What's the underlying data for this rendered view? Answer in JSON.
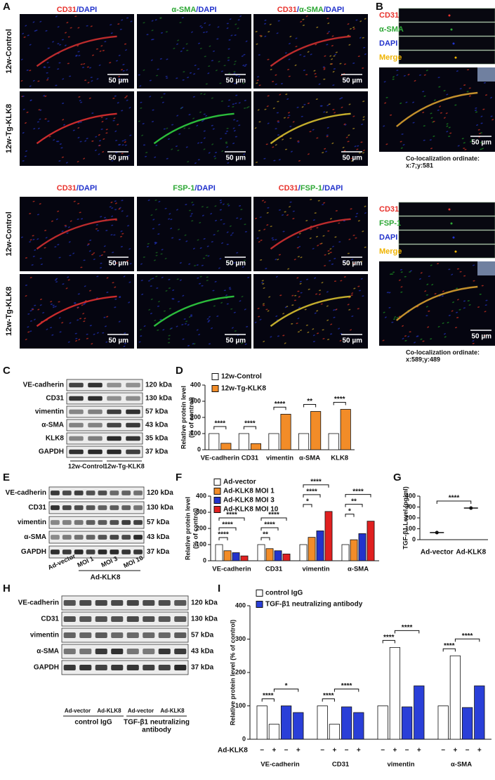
{
  "panel_a": {
    "label": "A",
    "scale_bar": "50 µm",
    "top": {
      "headers": [
        [
          {
            "text": "CD31",
            "color": "#e8322c"
          },
          {
            "text": "/DAPI",
            "color": "#2233cc"
          }
        ],
        [
          {
            "text": "α-SMA",
            "color": "#2ea836"
          },
          {
            "text": "/DAPI",
            "color": "#2233cc"
          }
        ],
        [
          {
            "text": "CD31",
            "color": "#e8322c"
          },
          {
            "text": "/",
            "color": "#2233cc"
          },
          {
            "text": "α-SMA",
            "color": "#2ea836"
          },
          {
            "text": "/DAPI",
            "color": "#2233cc"
          }
        ]
      ],
      "rows": [
        "12w-Control",
        "12w-Tg-KLK8"
      ]
    },
    "bottom": {
      "headers": [
        [
          {
            "text": "CD31",
            "color": "#e8322c"
          },
          {
            "text": "/DAPI",
            "color": "#2233cc"
          }
        ],
        [
          {
            "text": "FSP-1",
            "color": "#2ea836"
          },
          {
            "text": "/DAPI",
            "color": "#2233cc"
          }
        ],
        [
          {
            "text": "CD31",
            "color": "#e8322c"
          },
          {
            "text": "/",
            "color": "#2233cc"
          },
          {
            "text": "FSP-1",
            "color": "#2ea836"
          },
          {
            "text": "/DAPI",
            "color": "#2233cc"
          }
        ]
      ],
      "rows": [
        "12w-Control",
        "12w-Tg-KLK8"
      ]
    }
  },
  "panel_b": {
    "label": "B",
    "blocks": [
      {
        "channels": [
          {
            "text": "CD31",
            "color": "#e8322c"
          },
          {
            "text": "α-SMA",
            "color": "#2ea836"
          },
          {
            "text": "DAPI",
            "color": "#2233cc"
          },
          {
            "text": "Merge",
            "color": "#f0b400"
          }
        ],
        "scale_bar": "50 µm",
        "coloc_title": "Co-localization ordinate:",
        "coloc_value": "x:7;y:581"
      },
      {
        "channels": [
          {
            "text": "CD31",
            "color": "#e8322c"
          },
          {
            "text": "FSP-1",
            "color": "#2ea836"
          },
          {
            "text": "DAPI",
            "color": "#2233cc"
          },
          {
            "text": "Merge",
            "color": "#f0b400"
          }
        ],
        "scale_bar": "50 µm",
        "coloc_title": "Co-localization ordinate:",
        "coloc_value": "x:589;y:489"
      }
    ]
  },
  "panel_c": {
    "label": "C",
    "proteins": [
      "VE-cadherin",
      "CD31",
      "vimentin",
      "α-SMA",
      "KLK8",
      "GAPDH"
    ],
    "sizes": [
      "120 kDa",
      "130 kDa",
      "57 kDa",
      "43 kDa",
      "35 kDa",
      "37 kDa"
    ],
    "groups": [
      "12w-Control",
      "12w-Tg-KLK8"
    ]
  },
  "panel_e": {
    "label": "E",
    "proteins": [
      "VE-cadherin",
      "CD31",
      "vimentin",
      "α-SMA",
      "GAPDH"
    ],
    "sizes": [
      "120 kDa",
      "130 kDa",
      "57 kDa",
      "43 kDa",
      "37 kDa"
    ],
    "lanes": [
      "Ad-vector",
      "MOI 1",
      "MOI 3",
      "MOI 10"
    ],
    "group": "Ad-KLK8"
  },
  "panel_h": {
    "label": "H",
    "proteins": [
      "VE-cadherin",
      "CD31",
      "vimentin",
      "α-SMA",
      "GAPDH"
    ],
    "sizes": [
      "120 kDa",
      "130 kDa",
      "57 kDa",
      "43 kDa",
      "37 kDa"
    ],
    "lanes": [
      "Ad-vector",
      "Ad-KLK8",
      "Ad-vector",
      "Ad-KLK8"
    ],
    "groups": [
      [
        "control IgG"
      ],
      [
        "TGF-β1 neutralizing",
        "antibody"
      ]
    ]
  },
  "chart_data": [
    {
      "panel": "D",
      "type": "bar",
      "ylabel": [
        "Relative protein level",
        "(% of control)"
      ],
      "categories": [
        "VE-cadherin",
        "CD31",
        "vimentin",
        "α-SMA",
        "KLK8"
      ],
      "series": [
        {
          "name": "12w-Control",
          "color": "#ffffff",
          "values": [
            100,
            100,
            100,
            100,
            100
          ]
        },
        {
          "name": "12w-Tg-KLK8",
          "color": "#f28c28",
          "values": [
            40,
            38,
            220,
            237,
            250
          ]
        }
      ],
      "ylim": [
        0,
        400
      ],
      "yticks": [
        0,
        100,
        200,
        300,
        400
      ],
      "significance": [
        "****",
        "****",
        "****",
        "**",
        "****"
      ]
    },
    {
      "panel": "F",
      "type": "bar",
      "ylabel": [
        "Relative protein level",
        "(% of control)"
      ],
      "categories": [
        "VE-cadherin",
        "CD31",
        "vimentin",
        "α-SMA"
      ],
      "series": [
        {
          "name": "Ad-vector",
          "color": "#ffffff",
          "values": [
            100,
            100,
            100,
            100
          ]
        },
        {
          "name": "Ad-KLK8 MOI 1",
          "color": "#f28c28",
          "values": [
            62,
            75,
            145,
            130
          ]
        },
        {
          "name": "Ad-KLK8 MOI 3",
          "color": "#2233cc",
          "values": [
            50,
            62,
            185,
            168
          ]
        },
        {
          "name": "Ad-KLK8 MOI 10",
          "color": "#e02020",
          "values": [
            30,
            42,
            305,
            245
          ]
        }
      ],
      "ylim": [
        0,
        400
      ],
      "yticks": [
        0,
        100,
        200,
        300,
        400
      ],
      "significance": [
        [
          "****",
          "****",
          "****"
        ],
        [
          "**",
          "****",
          "****"
        ],
        [
          "*",
          "****",
          "****"
        ],
        [
          "*",
          "**",
          "****"
        ]
      ]
    },
    {
      "panel": "G",
      "type": "dot",
      "ylabel": [
        "TGF-β1 Level (pg/ml)"
      ],
      "categories": [
        "Ad-vector",
        "Ad-KLK8"
      ],
      "values": [
        65,
        290
      ],
      "color": "#111111",
      "ylim": [
        0,
        400
      ],
      "yticks": [
        0,
        100,
        200,
        300,
        400
      ],
      "significance": "****"
    },
    {
      "panel": "I",
      "type": "bar",
      "ylabel": [
        "Relative protein level (% of control)"
      ],
      "categories": [
        "VE-cadherin",
        "CD31",
        "vimentin",
        "α-SMA"
      ],
      "series": [
        {
          "name": "control IgG",
          "color": "#ffffff",
          "values": [
            [
              100,
              45
            ],
            [
              100,
              45
            ],
            [
              100,
              275
            ],
            [
              100,
              250
            ]
          ]
        },
        {
          "name": "TGF-β1 neutralizing antibody",
          "color": "#2a3fd8",
          "values": [
            [
              100,
              80
            ],
            [
              97,
              80
            ],
            [
              97,
              160
            ],
            [
              95,
              160
            ]
          ]
        }
      ],
      "treatment_label": "Ad-KLK8",
      "treatment_signs": [
        "−",
        "+"
      ],
      "ylim": [
        0,
        400
      ],
      "yticks": [
        0,
        100,
        200,
        300,
        400
      ],
      "significance": [
        [
          "****",
          "*"
        ],
        [
          "****",
          "****"
        ],
        [
          "****",
          "****"
        ],
        [
          "****",
          "****"
        ]
      ]
    }
  ]
}
